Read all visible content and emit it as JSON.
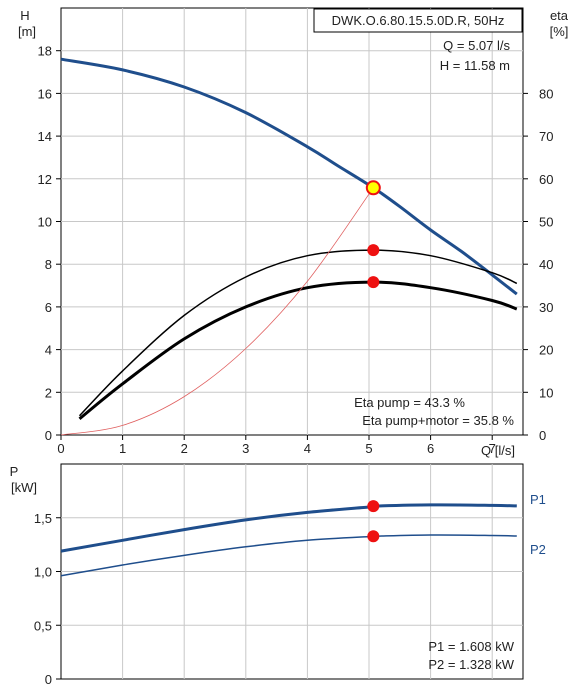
{
  "chart_data": [
    {
      "type": "line",
      "title": "DWK.O.6.80.15.5.0D.R, 50Hz",
      "xlabel": "Q [l/s]",
      "ylabel_left": [
        "H",
        "[m]"
      ],
      "ylabel_right": [
        "eta",
        "[%]"
      ],
      "xlim": [
        0,
        7.5
      ],
      "ylim_left": [
        0,
        20
      ],
      "ylim_right": [
        0,
        100
      ],
      "grid": true,
      "x_ticks": [
        "0",
        "1",
        "2",
        "3",
        "4",
        "5",
        "6",
        "7"
      ],
      "y_left_ticks": [
        "0",
        "2",
        "4",
        "6",
        "8",
        "10",
        "12",
        "14",
        "16",
        "18"
      ],
      "y_right_ticks": [
        "0",
        "10",
        "20",
        "30",
        "40",
        "50",
        "60",
        "70",
        "80"
      ],
      "operating_point": {
        "Q": 5.07,
        "H": 11.58
      },
      "info_q": "Q = 5.07 l/s",
      "info_h": "H = 11.58 m",
      "info_eta_pump": "Eta pump = 43.3 %",
      "info_eta_motor": "Eta pump+motor = 35.8 %",
      "series": [
        {
          "axis": "left",
          "color": "#1f4e8c",
          "x": [
            0,
            1,
            2,
            3,
            4,
            4.5,
            5.07,
            5.5,
            6,
            6.5,
            7,
            7.4
          ],
          "values": [
            17.6,
            17.1,
            16.3,
            15.1,
            13.5,
            12.6,
            11.58,
            10.7,
            9.6,
            8.6,
            7.5,
            6.6
          ]
        },
        {
          "axis": "right",
          "color": "#000000",
          "x": [
            0.3,
            1,
            2,
            3,
            4,
            5.07,
            6,
            7,
            7.4
          ],
          "values": [
            4.5,
            15,
            28,
            37,
            42,
            43.3,
            42,
            38,
            35.5
          ]
        },
        {
          "axis": "right",
          "color": "#000000",
          "x": [
            0.3,
            1,
            2,
            3,
            4,
            5.07,
            6,
            7,
            7.4
          ],
          "values": [
            3.8,
            12,
            22.5,
            30,
            34.5,
            35.8,
            34.5,
            31.5,
            29.5
          ]
        },
        {
          "axis": "left",
          "color": "#e06060",
          "x": [
            0,
            1,
            2,
            3,
            4,
            5.07
          ],
          "values": [
            0,
            0.45,
            1.8,
            4.05,
            7.2,
            11.58
          ]
        }
      ],
      "markers": [
        {
          "axis": "left",
          "x": 5.07,
          "y": 11.58,
          "color": "#ffff00"
        },
        {
          "axis": "right",
          "x": 5.07,
          "y": 43.3,
          "color": "#ee1111"
        },
        {
          "axis": "right",
          "x": 5.07,
          "y": 35.8,
          "color": "#ee1111"
        }
      ]
    },
    {
      "type": "line",
      "ylabel": [
        "P",
        "[kW]"
      ],
      "xlim": [
        0,
        7.5
      ],
      "ylim": [
        0,
        2
      ],
      "grid": true,
      "y_ticks": [
        "0",
        "0,5",
        "1,0",
        "1,5"
      ],
      "info_p1": "P1 = 1.608 kW",
      "info_p2": "P2 = 1.328 kW",
      "series": [
        {
          "name": "P1",
          "color": "#1f4e8c",
          "x": [
            0,
            1,
            2,
            3,
            4,
            5,
            5.07,
            6,
            7,
            7.4
          ],
          "values": [
            1.19,
            1.29,
            1.39,
            1.48,
            1.55,
            1.6,
            1.608,
            1.62,
            1.615,
            1.61
          ]
        },
        {
          "name": "P2",
          "color": "#1f4e8c",
          "x": [
            0,
            1,
            2,
            3,
            4,
            5,
            5.07,
            6,
            7,
            7.4
          ],
          "values": [
            0.96,
            1.06,
            1.15,
            1.23,
            1.29,
            1.325,
            1.328,
            1.34,
            1.335,
            1.33
          ]
        }
      ],
      "markers": [
        {
          "x": 5.07,
          "y": 1.608,
          "color": "#ee1111"
        },
        {
          "x": 5.07,
          "y": 1.328,
          "color": "#ee1111"
        }
      ]
    }
  ]
}
